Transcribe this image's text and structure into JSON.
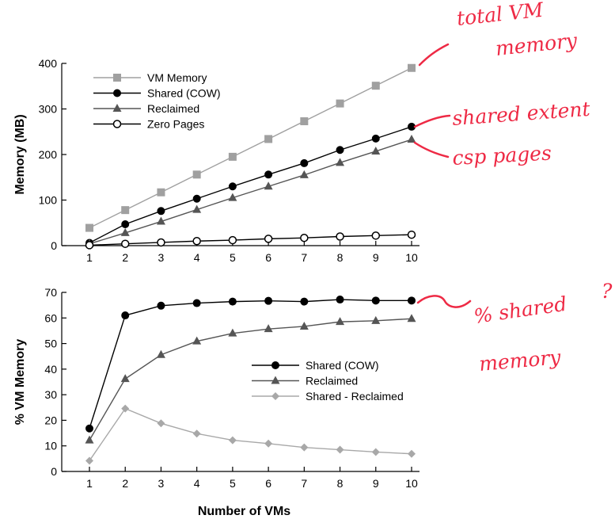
{
  "chart_data": [
    {
      "type": "line",
      "x": [
        1,
        2,
        3,
        4,
        5,
        6,
        7,
        8,
        9,
        10
      ],
      "xlim": [
        1,
        10
      ],
      "ylim": [
        0,
        400
      ],
      "yticks": [
        0,
        100,
        200,
        300,
        400
      ],
      "ylabel": "Memory (MB)",
      "xlabel": "",
      "grid": false,
      "legend_position": "top-left",
      "series": [
        {
          "name": "VM Memory",
          "values": [
            39,
            78,
            117,
            156,
            195,
            234,
            273,
            312,
            351,
            390
          ],
          "color": "#a0a0a0",
          "marker": "square"
        },
        {
          "name": "Shared (COW)",
          "values": [
            6,
            47,
            76,
            103,
            130,
            156,
            181,
            210,
            235,
            261
          ],
          "color": "#000000",
          "marker": "filled-circle"
        },
        {
          "name": "Reclaimed",
          "values": [
            4,
            28,
            53,
            79,
            105,
            130,
            155,
            182,
            207,
            233
          ],
          "color": "#555555",
          "marker": "triangle"
        },
        {
          "name": "Zero Pages",
          "values": [
            1,
            4,
            7,
            10,
            12,
            15,
            17,
            20,
            22,
            24
          ],
          "color": "#000000",
          "marker": "open-circle"
        }
      ]
    },
    {
      "type": "line",
      "x": [
        1,
        2,
        3,
        4,
        5,
        6,
        7,
        8,
        9,
        10
      ],
      "xlim": [
        1,
        10
      ],
      "ylim": [
        0,
        70
      ],
      "yticks": [
        0,
        10,
        20,
        30,
        40,
        50,
        60,
        70
      ],
      "ylabel": "% VM Memory",
      "xlabel": "Number of VMs",
      "grid": false,
      "legend_position": "right-center",
      "series": [
        {
          "name": "Shared (COW)",
          "values": [
            16.8,
            61,
            64.8,
            65.8,
            66.4,
            66.7,
            66.4,
            67.2,
            66.8,
            66.8
          ],
          "color": "#000000",
          "marker": "filled-circle"
        },
        {
          "name": "Reclaimed",
          "values": [
            12.2,
            36.2,
            45.6,
            50.9,
            54,
            55.7,
            56.7,
            58.5,
            58.9,
            59.7
          ],
          "color": "#555555",
          "marker": "triangle"
        },
        {
          "name": "Shared - Reclaimed",
          "values": [
            4.2,
            24.6,
            18.8,
            14.8,
            12.2,
            10.9,
            9.4,
            8.5,
            7.6,
            6.9
          ],
          "color": "#a8a8a8",
          "marker": "diamond"
        }
      ]
    }
  ],
  "annotations": {
    "total_vm_memory_line1": "total VM",
    "total_vm_memory_line2": "memory",
    "shared_extent": "shared extent",
    "csp_pages": "csp pages",
    "pct_shared_line1": "% shared",
    "pct_shared_line2": "memory",
    "question_mark": "?",
    "color": "#ee2a45"
  }
}
